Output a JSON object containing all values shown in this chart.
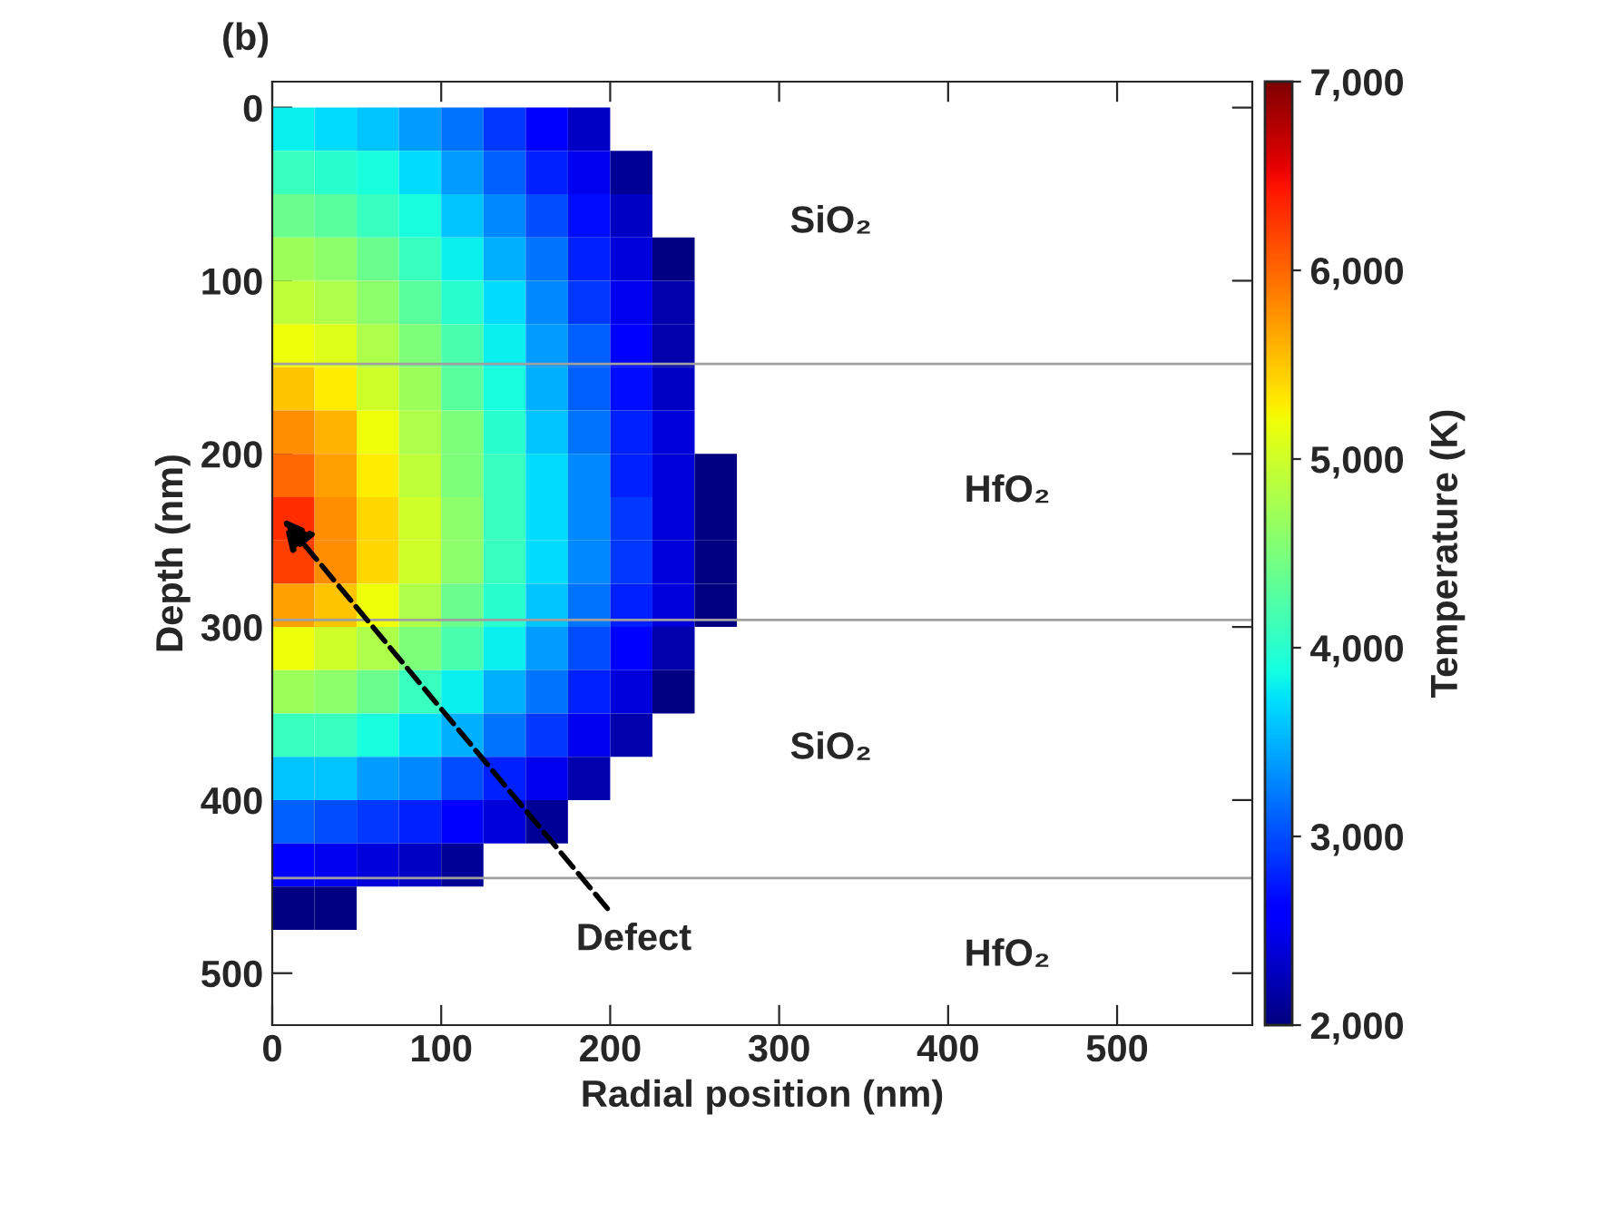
{
  "chart_data": {
    "type": "heatmap",
    "xlabel": "Radial position (nm)",
    "ylabel": "Depth (nm)",
    "clabel": "Temperature (K)",
    "x": [
      12.5,
      37.5,
      62.5,
      87.5,
      112.5,
      137.5,
      162.5,
      187.5,
      212.5,
      237.5,
      262.5
    ],
    "y": [
      12.5,
      37.5,
      62.5,
      87.5,
      112.5,
      137.5,
      162.5,
      187.5,
      212.5,
      237.5,
      262.5,
      287.5,
      312.5,
      337.5,
      362.5,
      387.5,
      412.5,
      437.5,
      462.5
    ],
    "cells": [
      [
        3800,
        3700,
        3600,
        3400,
        3200,
        2900,
        2600,
        2300,
        null,
        null,
        null
      ],
      [
        4100,
        4000,
        3900,
        3700,
        3400,
        3100,
        2800,
        2500,
        2100,
        null,
        null
      ],
      [
        4400,
        4300,
        4100,
        3900,
        3600,
        3300,
        3000,
        2700,
        2300,
        null,
        null
      ],
      [
        4700,
        4600,
        4400,
        4100,
        3800,
        3500,
        3200,
        2800,
        2400,
        2000,
        null
      ],
      [
        4900,
        4800,
        4600,
        4300,
        4000,
        3700,
        3300,
        2900,
        2500,
        2200,
        null
      ],
      [
        5200,
        5100,
        4800,
        4500,
        4200,
        3800,
        3400,
        3100,
        2600,
        2200,
        null
      ],
      [
        5500,
        5300,
        5000,
        4700,
        4300,
        3900,
        3500,
        3100,
        2700,
        2300,
        null
      ],
      [
        5800,
        5600,
        5200,
        4800,
        4500,
        4000,
        3600,
        3200,
        2800,
        2400,
        null
      ],
      [
        6000,
        5700,
        5300,
        4900,
        4500,
        4100,
        3700,
        3300,
        2800,
        2400,
        2000
      ],
      [
        6300,
        5800,
        5400,
        5000,
        4600,
        4100,
        3700,
        3300,
        2900,
        2400,
        2000
      ],
      [
        6200,
        5800,
        5400,
        5000,
        4600,
        4100,
        3700,
        3300,
        2900,
        2400,
        2000
      ],
      [
        5700,
        5500,
        5200,
        4800,
        4400,
        4000,
        3600,
        3200,
        2800,
        2400,
        2000
      ],
      [
        5200,
        5000,
        4800,
        4500,
        4200,
        3800,
        3400,
        3000,
        2600,
        2200,
        null
      ],
      [
        4700,
        4600,
        4400,
        4100,
        3800,
        3500,
        3200,
        2800,
        2400,
        2000,
        null
      ],
      [
        4100,
        4100,
        3900,
        3700,
        3500,
        3200,
        2900,
        2500,
        2200,
        null,
        null
      ],
      [
        3600,
        3600,
        3400,
        3300,
        3000,
        2800,
        2500,
        2200,
        null,
        null,
        null
      ],
      [
        3100,
        3000,
        2900,
        2800,
        2600,
        2400,
        2100,
        null,
        null,
        null,
        null
      ],
      [
        2600,
        2500,
        2400,
        2300,
        2100,
        null,
        null,
        null,
        null,
        null,
        null
      ],
      [
        2000,
        2000,
        null,
        null,
        null,
        null,
        null,
        null,
        null,
        null,
        null
      ]
    ],
    "xlim": [
      0,
      580
    ],
    "ylim": [
      530,
      -15
    ],
    "xticks": [
      0,
      100,
      200,
      300,
      400,
      500
    ],
    "yticks": [
      0,
      100,
      200,
      300,
      400,
      500
    ],
    "clim": [
      2000,
      7000
    ],
    "cticks": [
      {
        "value": 2000,
        "label": "2,000"
      },
      {
        "value": 3000,
        "label": "3,000"
      },
      {
        "value": 4000,
        "label": "4,000"
      },
      {
        "value": 5000,
        "label": "5,000"
      },
      {
        "value": 6000,
        "label": "6,000"
      },
      {
        "value": 7000,
        "label": "7,000"
      }
    ],
    "ref_lines": [
      {
        "axis": "y",
        "value": 148,
        "color": "#a0a0a0"
      },
      {
        "axis": "y",
        "value": 296,
        "color": "#a0a0a0"
      },
      {
        "axis": "y",
        "value": 445,
        "color": "#a0a0a0"
      }
    ],
    "annotations": [
      "(b)",
      "SiO₂",
      "HfO₂",
      "SiO₂",
      "HfO₂",
      "Defect"
    ],
    "grid": false
  }
}
